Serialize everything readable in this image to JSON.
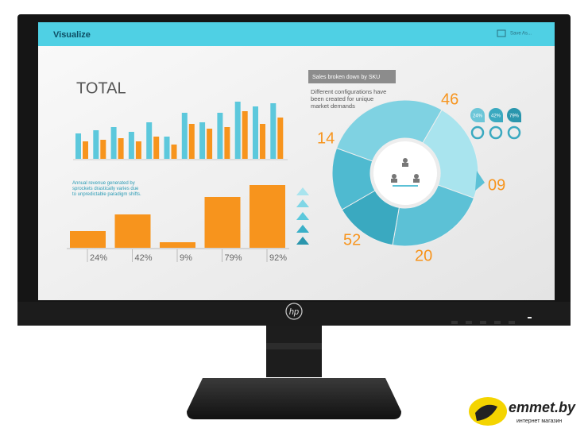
{
  "screen": {
    "app_title": "Visualize",
    "save_button": "Save As...",
    "total_title": "TOTAL",
    "revenue_note": "Annual revenue generated by sprockets drastically varies due to unpredictable paradigm shifts.",
    "revenue_labels": [
      "24%",
      "42%",
      "9%",
      "79%",
      "92%"
    ],
    "sku_title": "Sales broken down by SKU",
    "sku_note": [
      "Different configurations have",
      "been created for unique",
      "market demands"
    ],
    "donut_labels": [
      "14",
      "46",
      "09",
      "52",
      "20"
    ],
    "badges": [
      "24%",
      "42%",
      "79%"
    ]
  },
  "monitor": {
    "logo": "hp"
  },
  "watermark": {
    "site": "emmet.by",
    "tagline": "интернет магазин"
  }
}
